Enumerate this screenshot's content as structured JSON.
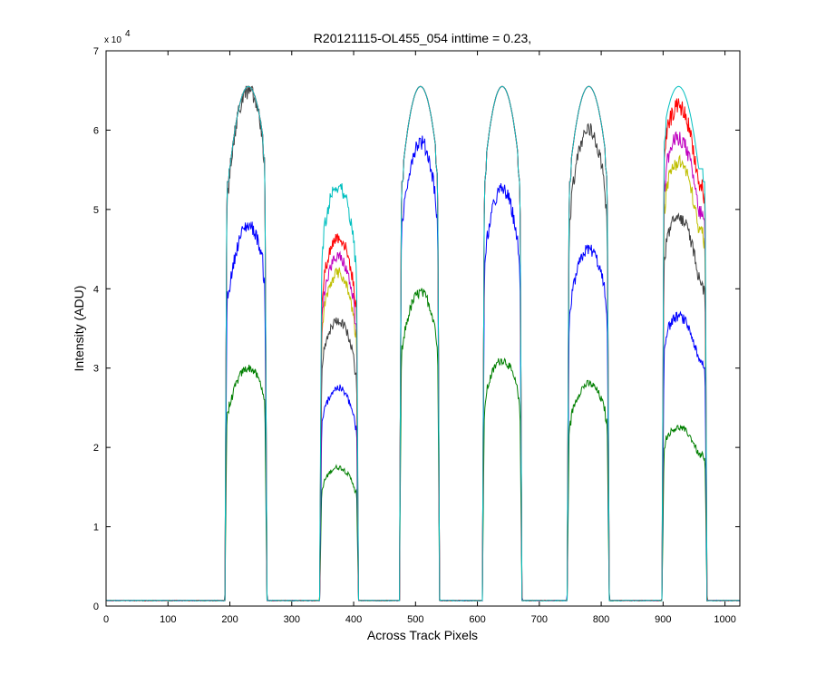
{
  "chart_data": {
    "type": "line",
    "title": "R20121115-OL455_054 inttime = 0.23,",
    "xlabel": "Across Track Pixels",
    "ylabel": "Intensity (ADU)",
    "xlim": [
      0,
      1024
    ],
    "ylim": [
      0,
      70000
    ],
    "y_exponent_label": "x 10",
    "y_exponent_power": "4",
    "x_ticks": [
      0,
      100,
      200,
      300,
      400,
      500,
      600,
      700,
      800,
      900,
      1000
    ],
    "x_tick_labels": [
      "0",
      "100",
      "200",
      "300",
      "400",
      "500",
      "600",
      "700",
      "800",
      "900",
      "1000"
    ],
    "y_ticks": [
      0,
      10000,
      20000,
      30000,
      40000,
      50000,
      60000,
      70000
    ],
    "y_tick_labels": [
      "0",
      "1",
      "2",
      "3",
      "4",
      "5",
      "6",
      "7"
    ],
    "baseline": 700,
    "saturation": 65500,
    "lobes": [
      {
        "start": 196,
        "end": 256,
        "peak": 230
      },
      {
        "start": 349,
        "end": 404,
        "peak": 375
      },
      {
        "start": 478,
        "end": 535,
        "peak": 508
      },
      {
        "start": 612,
        "end": 668,
        "peak": 640
      },
      {
        "start": 749,
        "end": 809,
        "peak": 780
      },
      {
        "start": 902,
        "end": 967,
        "peak": 925
      }
    ],
    "series": [
      {
        "name": "series-green",
        "color": "#007f00",
        "levels": [
          30000,
          17500,
          39500,
          31000,
          28000,
          22500
        ]
      },
      {
        "name": "series-blue",
        "color": "#0000ff",
        "levels": [
          48000,
          27500,
          58500,
          52500,
          45000,
          36500
        ]
      },
      {
        "name": "series-black",
        "color": "#3f3f3f",
        "levels": [
          65000,
          36000,
          65500,
          65500,
          60000,
          49000
        ]
      },
      {
        "name": "series-yellow",
        "color": "#bfbf00",
        "levels": [
          65500,
          42000,
          65500,
          65500,
          65500,
          56000
        ]
      },
      {
        "name": "series-magenta",
        "color": "#bf00bf",
        "levels": [
          65500,
          44000,
          65500,
          65500,
          65500,
          59000
        ]
      },
      {
        "name": "series-red",
        "color": "#ff0000",
        "levels": [
          65500,
          46500,
          65500,
          65500,
          65500,
          63000
        ]
      },
      {
        "name": "series-cyan",
        "color": "#00bfbf",
        "levels": [
          65500,
          53000,
          65500,
          65500,
          65500,
          65500
        ]
      }
    ]
  }
}
